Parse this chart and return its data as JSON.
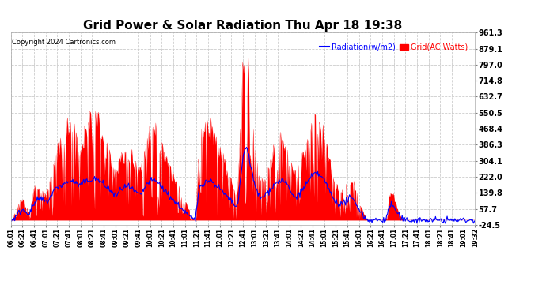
{
  "title": "Grid Power & Solar Radiation Thu Apr 18 19:38",
  "copyright": "Copyright 2024 Cartronics.com",
  "legend_radiation": "Radiation(w/m2)",
  "legend_grid": "Grid(AC Watts)",
  "y_ticks": [
    -24.5,
    57.7,
    139.8,
    222.0,
    304.1,
    386.3,
    468.4,
    550.5,
    632.7,
    714.8,
    797.0,
    879.1,
    961.3
  ],
  "x_labels": [
    "06:01",
    "06:21",
    "06:41",
    "07:01",
    "07:21",
    "07:41",
    "08:01",
    "08:21",
    "08:41",
    "09:01",
    "09:21",
    "09:41",
    "10:01",
    "10:21",
    "10:41",
    "11:01",
    "11:21",
    "11:41",
    "12:01",
    "12:21",
    "12:41",
    "13:01",
    "13:21",
    "13:41",
    "14:01",
    "14:21",
    "14:41",
    "15:01",
    "15:21",
    "15:41",
    "16:01",
    "16:21",
    "16:41",
    "17:01",
    "17:21",
    "17:41",
    "18:01",
    "18:21",
    "18:41",
    "19:01",
    "19:32"
  ],
  "bg_color": "#ffffff",
  "plot_bg_color": "#ffffff",
  "grid_color": "#cccccc",
  "radiation_color": "#0000ff",
  "solar_fill_color": "#ff0000",
  "title_fontsize": 11,
  "tick_fontsize": 7,
  "y_min": -24.5,
  "y_max": 961.3,
  "solar_data": [
    0,
    5,
    30,
    60,
    90,
    100,
    110,
    90,
    70,
    50,
    40,
    80,
    130,
    160,
    170,
    160,
    155,
    140,
    135,
    130,
    160,
    200,
    250,
    290,
    320,
    350,
    370,
    380,
    400,
    430,
    450,
    480,
    500,
    490,
    460,
    430,
    390,
    380,
    400,
    420,
    450,
    470,
    490,
    510,
    520,
    530,
    520,
    500,
    460,
    420,
    380,
    360,
    340,
    310,
    280,
    250,
    220,
    240,
    280,
    310,
    330,
    340,
    345,
    340,
    330,
    315,
    300,
    285,
    270,
    255,
    270,
    310,
    360,
    400,
    430,
    450,
    460,
    455,
    440,
    420,
    390,
    360,
    330,
    300,
    280,
    260,
    240,
    220,
    200,
    180,
    160,
    140,
    120,
    100,
    80,
    60,
    40,
    20,
    5,
    0,
    180,
    350,
    400,
    420,
    440,
    460,
    470,
    460,
    440,
    415,
    390,
    370,
    345,
    320,
    295,
    270,
    245,
    220,
    195,
    170,
    145,
    120,
    200,
    400,
    650,
    850,
    940,
    880,
    750,
    600,
    450,
    350,
    280,
    230,
    185,
    195,
    210,
    230,
    255,
    280,
    310,
    340,
    365,
    385,
    400,
    410,
    405,
    390,
    365,
    330,
    290,
    250,
    220,
    230,
    250,
    270,
    300,
    330,
    365,
    395,
    420,
    450,
    475,
    490,
    495,
    490,
    475,
    450,
    415,
    375,
    330,
    285,
    245,
    210,
    185,
    165,
    150,
    145,
    150,
    165,
    180,
    195,
    200,
    195,
    180,
    155,
    125,
    95,
    65,
    40,
    20,
    5,
    0,
    0,
    0,
    0,
    0,
    0,
    0,
    0,
    0,
    0,
    60,
    120,
    150,
    130,
    100,
    70,
    40,
    20,
    5,
    0,
    0,
    0,
    0,
    0,
    0,
    0,
    0,
    0,
    0,
    0,
    0,
    0,
    0,
    0,
    0,
    0,
    0,
    0,
    0,
    0,
    0,
    0,
    0,
    0,
    0,
    0,
    0,
    0,
    0,
    0,
    0,
    0,
    0,
    0,
    0,
    0,
    0,
    0
  ],
  "grid_power_data": [
    0,
    5,
    10,
    20,
    35,
    45,
    55,
    50,
    45,
    40,
    38,
    55,
    75,
    90,
    100,
    105,
    108,
    102,
    98,
    95,
    100,
    115,
    135,
    150,
    160,
    170,
    175,
    178,
    182,
    188,
    192,
    198,
    202,
    200,
    195,
    188,
    182,
    180,
    185,
    190,
    195,
    200,
    205,
    208,
    210,
    212,
    210,
    205,
    198,
    190,
    180,
    172,
    165,
    155,
    145,
    135,
    125,
    130,
    145,
    158,
    165,
    170,
    172,
    170,
    165,
    158,
    150,
    142,
    135,
    128,
    135,
    152,
    170,
    185,
    195,
    202,
    205,
    203,
    198,
    192,
    182,
    170,
    158,
    145,
    135,
    125,
    115,
    105,
    95,
    85,
    75,
    65,
    55,
    45,
    35,
    25,
    18,
    10,
    3,
    0,
    90,
    165,
    182,
    190,
    196,
    200,
    202,
    200,
    195,
    188,
    180,
    172,
    162,
    150,
    140,
    130,
    118,
    108,
    97,
    87,
    78,
    68,
    98,
    185,
    280,
    350,
    380,
    355,
    310,
    260,
    210,
    175,
    148,
    128,
    112,
    118,
    125,
    135,
    145,
    158,
    168,
    178,
    188,
    196,
    202,
    206,
    203,
    196,
    184,
    168,
    150,
    130,
    115,
    120,
    128,
    138,
    150,
    165,
    178,
    192,
    205,
    218,
    228,
    235,
    238,
    235,
    228,
    218,
    205,
    188,
    168,
    148,
    128,
    112,
    100,
    92,
    85,
    82,
    85,
    92,
    100,
    108,
    112,
    108,
    100,
    88,
    72,
    56,
    40,
    25,
    12,
    3,
    0,
    0,
    0,
    0,
    0,
    0,
    0,
    0,
    0,
    0,
    32,
    65,
    80,
    72,
    58,
    42,
    25,
    12,
    3,
    0,
    0,
    0,
    0,
    0,
    0,
    0,
    0,
    0,
    0,
    0,
    0,
    0,
    0,
    0,
    0,
    0,
    0,
    0,
    0,
    0,
    0,
    0,
    0,
    0,
    0,
    0,
    0,
    0,
    0,
    0,
    0,
    0,
    0,
    0,
    0,
    0,
    0,
    0
  ]
}
